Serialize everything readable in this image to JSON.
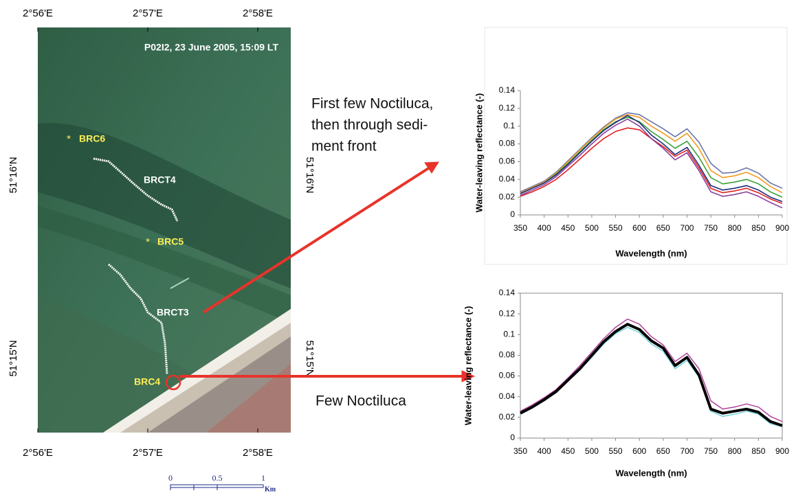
{
  "map": {
    "title": "P02I2, 23 June 2005, 15:09 LT",
    "lon_labels": [
      "2°56'E",
      "2°57'E",
      "2°58'E"
    ],
    "lat_labels": [
      "51°16'N",
      "51°15'N"
    ],
    "stations": [
      "BRC6",
      "BRC5",
      "BRC4"
    ],
    "transects": [
      "BRCT4",
      "BRCT3"
    ],
    "scale_labels": [
      "0",
      "0.5",
      "1",
      "Km"
    ]
  },
  "annotations": {
    "top": [
      "First few Noctiluca,",
      "then through sedi-",
      "ment front"
    ],
    "bottom": "Few Noctiluca"
  },
  "chart_data": [
    {
      "type": "line",
      "x": [
        350,
        375,
        400,
        425,
        450,
        475,
        500,
        525,
        550,
        575,
        600,
        625,
        650,
        675,
        700,
        725,
        750,
        775,
        800,
        825,
        850,
        875,
        900
      ],
      "series": [
        {
          "color": "#6a75a8",
          "values": [
            0.026,
            0.032,
            0.038,
            0.048,
            0.061,
            0.074,
            0.087,
            0.099,
            0.109,
            0.115,
            0.113,
            0.105,
            0.097,
            0.088,
            0.097,
            0.082,
            0.058,
            0.047,
            0.048,
            0.053,
            0.047,
            0.036,
            0.03
          ]
        },
        {
          "color": "#f39a1f",
          "values": [
            0.025,
            0.031,
            0.037,
            0.047,
            0.06,
            0.073,
            0.086,
            0.098,
            0.108,
            0.113,
            0.11,
            0.1,
            0.092,
            0.083,
            0.092,
            0.075,
            0.05,
            0.042,
            0.044,
            0.048,
            0.042,
            0.032,
            0.025
          ]
        },
        {
          "color": "#3aa13a",
          "values": [
            0.024,
            0.03,
            0.036,
            0.046,
            0.058,
            0.071,
            0.084,
            0.096,
            0.105,
            0.11,
            0.105,
            0.094,
            0.085,
            0.075,
            0.083,
            0.065,
            0.042,
            0.035,
            0.037,
            0.04,
            0.035,
            0.026,
            0.02
          ]
        },
        {
          "color": "#1c2a7a",
          "values": [
            0.024,
            0.03,
            0.036,
            0.045,
            0.057,
            0.07,
            0.083,
            0.095,
            0.104,
            0.112,
            0.104,
            0.09,
            0.08,
            0.068,
            0.076,
            0.056,
            0.033,
            0.028,
            0.03,
            0.033,
            0.028,
            0.02,
            0.015
          ]
        },
        {
          "color": "#e02020",
          "values": [
            0.021,
            0.026,
            0.032,
            0.04,
            0.051,
            0.063,
            0.075,
            0.086,
            0.094,
            0.098,
            0.096,
            0.086,
            0.077,
            0.066,
            0.073,
            0.053,
            0.03,
            0.025,
            0.027,
            0.03,
            0.025,
            0.018,
            0.013
          ]
        },
        {
          "color": "#8a3f9e",
          "values": [
            0.022,
            0.028,
            0.034,
            0.043,
            0.055,
            0.067,
            0.08,
            0.092,
            0.101,
            0.108,
            0.1,
            0.086,
            0.075,
            0.062,
            0.07,
            0.05,
            0.026,
            0.021,
            0.023,
            0.026,
            0.021,
            0.014,
            0.008
          ]
        }
      ],
      "xlim": [
        350,
        900
      ],
      "xticks": [
        350,
        400,
        450,
        500,
        550,
        600,
        650,
        700,
        750,
        800,
        850,
        900
      ],
      "ylim": [
        0,
        0.14
      ],
      "yticks": [
        0,
        0.02,
        0.04,
        0.06,
        0.08,
        0.1,
        0.12,
        0.14
      ],
      "xlabel": "Wavelength (nm)",
      "ylabel": "Water-leaving reflectance (-)",
      "frame": false
    },
    {
      "type": "line",
      "x": [
        350,
        375,
        400,
        425,
        450,
        475,
        500,
        525,
        550,
        575,
        600,
        625,
        650,
        675,
        700,
        725,
        750,
        775,
        800,
        825,
        850,
        875,
        900
      ],
      "series": [
        {
          "color": "#b0409a",
          "line_width": 1.5,
          "values": [
            0.026,
            0.032,
            0.039,
            0.047,
            0.058,
            0.07,
            0.083,
            0.096,
            0.107,
            0.115,
            0.11,
            0.098,
            0.09,
            0.074,
            0.082,
            0.067,
            0.036,
            0.028,
            0.03,
            0.033,
            0.03,
            0.021,
            0.016
          ]
        },
        {
          "color": "#6fd0d8",
          "line_width": 1.5,
          "values": [
            0.023,
            0.029,
            0.036,
            0.044,
            0.055,
            0.066,
            0.078,
            0.091,
            0.101,
            0.107,
            0.102,
            0.091,
            0.084,
            0.067,
            0.075,
            0.059,
            0.026,
            0.021,
            0.023,
            0.026,
            0.023,
            0.014,
            0.011
          ]
        },
        {
          "color": "#000000",
          "line_width": 4,
          "values": [
            0.024,
            0.03,
            0.037,
            0.045,
            0.056,
            0.067,
            0.08,
            0.093,
            0.103,
            0.11,
            0.105,
            0.094,
            0.087,
            0.07,
            0.078,
            0.061,
            0.028,
            0.024,
            0.026,
            0.028,
            0.025,
            0.016,
            0.012
          ]
        }
      ],
      "xlim": [
        350,
        900
      ],
      "xticks": [
        350,
        400,
        450,
        500,
        550,
        600,
        650,
        700,
        750,
        800,
        850,
        900
      ],
      "ylim": [
        0,
        0.14
      ],
      "yticks": [
        0,
        0.02,
        0.04,
        0.06,
        0.08,
        0.1,
        0.12,
        0.14
      ],
      "xlabel": "Wavelength (nm)",
      "ylabel": "Water-leaving reflectance (-)",
      "frame": true
    }
  ]
}
